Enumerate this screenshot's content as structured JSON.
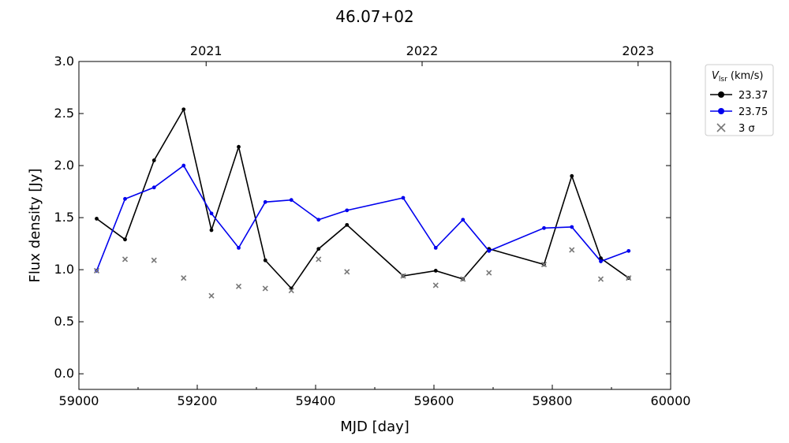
{
  "chart_data": {
    "type": "line",
    "title": "46.07+02",
    "xlabel": "MJD [day]",
    "ylabel": "Flux density [Jy]",
    "xlim": [
      59000,
      60000
    ],
    "ylim": [
      -0.15,
      3.0
    ],
    "x_ticks": [
      59000,
      59200,
      59400,
      59600,
      59800,
      60000
    ],
    "y_ticks": [
      0.0,
      0.5,
      1.0,
      1.5,
      2.0,
      2.5,
      3.0
    ],
    "x_tick_labels": [
      "59000",
      "59200",
      "59400",
      "59600",
      "59800",
      "60000"
    ],
    "y_tick_labels": [
      "0.0",
      "0.5",
      "1.0",
      "1.5",
      "2.0",
      "2.5",
      "3.0"
    ],
    "top_axis": {
      "ticks": [
        59215,
        59580,
        59945
      ],
      "labels": [
        "2021",
        "2022",
        "2023"
      ]
    },
    "legend": {
      "title_main": "V",
      "title_sub": "lsr",
      "title_unit": " (km/s)",
      "placement": "outside-right-top"
    },
    "series": [
      {
        "name": "23.37",
        "color": "#000000",
        "marker": "circle",
        "x": [
          59030,
          59078,
          59127,
          59177,
          59224,
          59270,
          59315,
          59359,
          59405,
          59453,
          59548,
          59603,
          59649,
          59693,
          59786,
          59833,
          59882,
          59929
        ],
        "y": [
          1.49,
          1.29,
          2.05,
          2.54,
          1.38,
          2.18,
          1.09,
          0.82,
          1.2,
          1.43,
          0.94,
          0.99,
          0.91,
          1.2,
          1.05,
          1.9,
          1.11,
          0.92
        ]
      },
      {
        "name": "23.75",
        "color": "#0000ee",
        "marker": "circle",
        "x": [
          59030,
          59078,
          59127,
          59177,
          59224,
          59270,
          59315,
          59359,
          59405,
          59453,
          59548,
          59603,
          59649,
          59693,
          59786,
          59833,
          59882,
          59929
        ],
        "y": [
          0.99,
          1.68,
          1.79,
          2.0,
          1.54,
          1.21,
          1.65,
          1.67,
          1.48,
          1.57,
          1.69,
          1.21,
          1.48,
          1.18,
          1.4,
          1.41,
          1.08,
          1.18
        ]
      },
      {
        "name": "3 σ",
        "color": "#777777",
        "marker": "x",
        "x": [
          59030,
          59078,
          59127,
          59177,
          59224,
          59270,
          59315,
          59359,
          59405,
          59453,
          59548,
          59603,
          59649,
          59693,
          59786,
          59833,
          59882,
          59929
        ],
        "y": [
          0.99,
          1.1,
          1.09,
          0.92,
          0.75,
          0.84,
          0.82,
          0.8,
          1.1,
          0.98,
          0.94,
          0.85,
          0.91,
          0.97,
          1.05,
          1.19,
          0.91,
          0.92
        ]
      }
    ]
  }
}
